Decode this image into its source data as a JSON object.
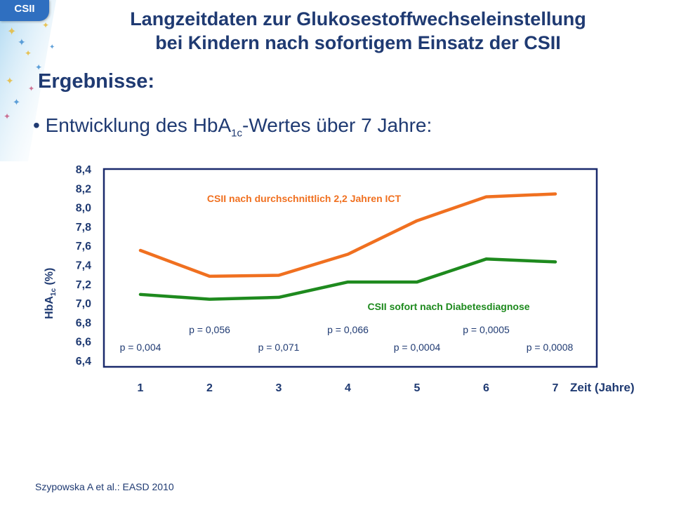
{
  "header": {
    "badge": "CSII",
    "title_line1": "Langzeitdaten zur Glukosestoffwechseleinstellung",
    "title_line2": "bei Kindern nach sofortigem Einsatz der CSII"
  },
  "content": {
    "subtitle": "Ergebnisse:",
    "bullet_prefix": "Entwicklung des HbA",
    "bullet_sub": "1c",
    "bullet_suffix": "-Wertes über 7 Jahre:"
  },
  "footer": {
    "citation": "Szypowska A et al.: EASD 2010"
  },
  "colors": {
    "title": "#1f3a72",
    "orange": "#f07020",
    "green": "#1e8a1e",
    "frame": "#1a2a6c"
  },
  "chart_data": {
    "type": "line",
    "x": [
      1,
      2,
      3,
      4,
      5,
      6,
      7
    ],
    "x_tick_labels": [
      "1",
      "2",
      "3",
      "4",
      "5",
      "6",
      "7"
    ],
    "xlabel": "Zeit (Jahre)",
    "ylabel_main": "HbA",
    "ylabel_sub": "1c",
    "ylabel_suffix": " (%)",
    "ylim": [
      6.4,
      8.4
    ],
    "y_ticks": [
      8.4,
      8.2,
      8.0,
      7.8,
      7.6,
      7.4,
      7.2,
      7.0,
      6.8,
      6.6,
      6.4
    ],
    "y_tick_labels": [
      "8,4",
      "8,2",
      "8,0",
      "7,8",
      "7,6",
      "7,4",
      "7,2",
      "7,0",
      "6,8",
      "6,6",
      "6,4"
    ],
    "series": [
      {
        "name": "CSII nach durchschnittlich 2,2 Jahren ICT",
        "color": "#f07020",
        "values": [
          7.55,
          7.28,
          7.29,
          7.51,
          7.86,
          8.11,
          8.14
        ]
      },
      {
        "name": "CSII sofort nach Diabetesdiagnose",
        "color": "#1e8a1e",
        "values": [
          7.09,
          7.04,
          7.06,
          7.22,
          7.22,
          7.46,
          7.43
        ]
      }
    ],
    "annotations": [
      {
        "x": 1,
        "text": "p = 0,004",
        "level": "low"
      },
      {
        "x": 2,
        "text": "p = 0,056",
        "level": "high"
      },
      {
        "x": 3,
        "text": "p = 0,071",
        "level": "low"
      },
      {
        "x": 4,
        "text": "p = 0,066",
        "level": "high"
      },
      {
        "x": 5,
        "text": "p = 0,0004",
        "level": "low"
      },
      {
        "x": 6,
        "text": "p = 0,0005",
        "level": "high"
      },
      {
        "x": 7,
        "text": "p = 0,0008",
        "level": "low"
      }
    ],
    "grid": false,
    "legend": "inline"
  }
}
